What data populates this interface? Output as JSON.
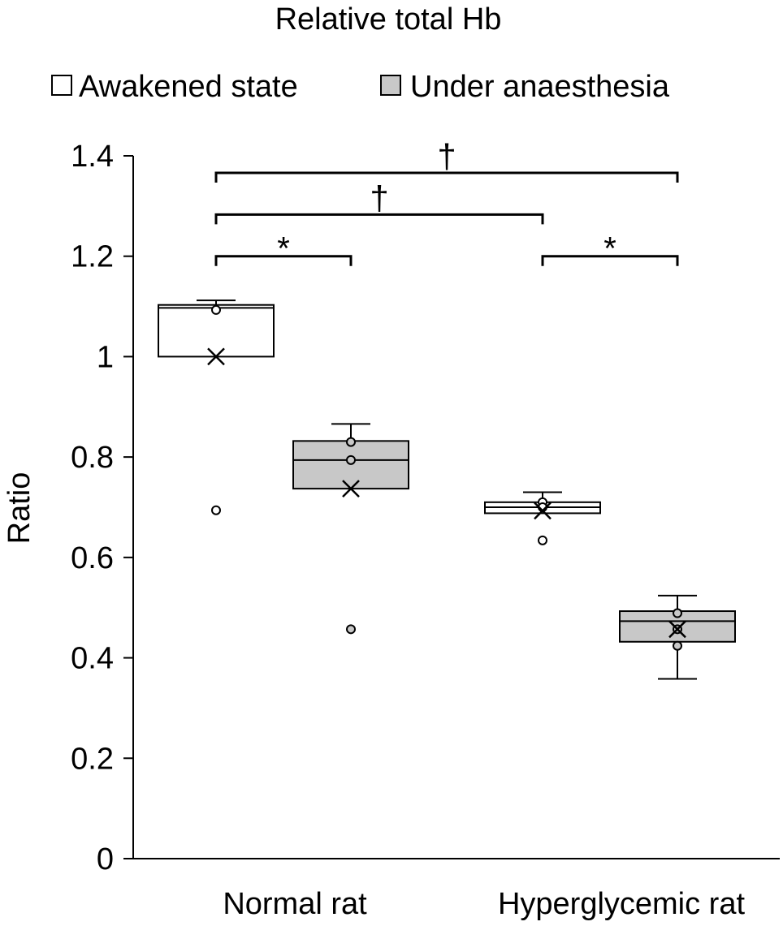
{
  "chart_data": {
    "type": "box",
    "title": "Relative total Hb",
    "ylabel": "Ratio",
    "xlabel": "",
    "ylim": [
      0,
      1.4
    ],
    "yticks": [
      0,
      0.2,
      0.4,
      0.6,
      0.8,
      1,
      1.2,
      1.4
    ],
    "ytick_labels": [
      "0",
      "0.2",
      "0.4",
      "0.6",
      "0.8",
      "1",
      "1.2",
      "1.4"
    ],
    "categories": [
      "Normal rat",
      "Hyperglycemic rat"
    ],
    "legend_position": "top",
    "series": [
      {
        "name": "Awakened state",
        "fill": "#ffffff",
        "boxes": [
          {
            "category": "Normal rat",
            "whisker_low": 1.0,
            "q1": 1.0,
            "median": 1.097,
            "q3": 1.103,
            "whisker_high": 1.112,
            "mean": 1.0,
            "points": [
              1.093
            ],
            "outliers": [
              0.694
            ]
          },
          {
            "category": "Hyperglycemic rat",
            "whisker_low": 0.688,
            "q1": 0.688,
            "median": 0.7,
            "q3": 0.71,
            "whisker_high": 0.73,
            "mean": 0.693,
            "points": [
              0.71,
              0.7
            ],
            "outliers": [
              0.634
            ]
          }
        ]
      },
      {
        "name": "Under anaesthesia",
        "fill": "#c8c8c8",
        "boxes": [
          {
            "category": "Normal rat",
            "whisker_low": 0.737,
            "q1": 0.737,
            "median": 0.794,
            "q3": 0.832,
            "whisker_high": 0.866,
            "mean": 0.737,
            "points": [
              0.83,
              0.794
            ],
            "outliers": [
              0.457
            ]
          },
          {
            "category": "Hyperglycemic rat",
            "whisker_low": 0.358,
            "q1": 0.432,
            "median": 0.473,
            "q3": 0.493,
            "whisker_high": 0.524,
            "mean": 0.457,
            "points": [
              0.489,
              0.457,
              0.424
            ],
            "outliers": []
          }
        ]
      }
    ],
    "annotations": [
      {
        "label": "*",
        "from": "Normal rat / Awakened state",
        "to": "Normal rat / Under anaesthesia",
        "y": 1.2
      },
      {
        "label": "*",
        "from": "Hyperglycemic rat / Awakened state",
        "to": "Hyperglycemic rat / Under anaesthesia",
        "y": 1.2
      },
      {
        "label": "†",
        "from": "Normal rat / Awakened state",
        "to": "Hyperglycemic rat / Awakened state",
        "y": 1.283
      },
      {
        "label": "†",
        "from": "Normal rat / Awakened state",
        "to": "Hyperglycemic rat / Under anaesthesia",
        "y": 1.366
      }
    ]
  }
}
